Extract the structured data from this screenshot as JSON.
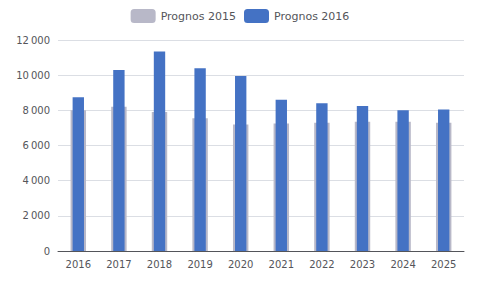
{
  "chart_data": {
    "type": "bar",
    "categories": [
      "2016",
      "2017",
      "2018",
      "2019",
      "2020",
      "2021",
      "2022",
      "2023",
      "2024",
      "2025"
    ],
    "series": [
      {
        "name": "Prognos 2015",
        "color": "#B8B8C8",
        "values": [
          8000,
          8200,
          7900,
          7550,
          7200,
          7250,
          7300,
          7350,
          7350,
          7300
        ]
      },
      {
        "name": "Prognos 2016",
        "color": "#4472C4",
        "values": [
          8750,
          10300,
          11350,
          10400,
          9950,
          8600,
          8400,
          8250,
          8000,
          8050
        ]
      }
    ],
    "ylim": [
      0,
      12000
    ],
    "yticks": [
      0,
      {
        "value": 2000,
        "label": "2 000"
      },
      {
        "value": 4000,
        "label": "4 000"
      },
      {
        "value": 6000,
        "label": "6 000"
      },
      {
        "value": 8000,
        "label": "8 000"
      },
      {
        "value": 10000,
        "label": "10 000"
      },
      {
        "value": 12000,
        "label": "12 000"
      }
    ],
    "grid": true,
    "legend": "top"
  }
}
